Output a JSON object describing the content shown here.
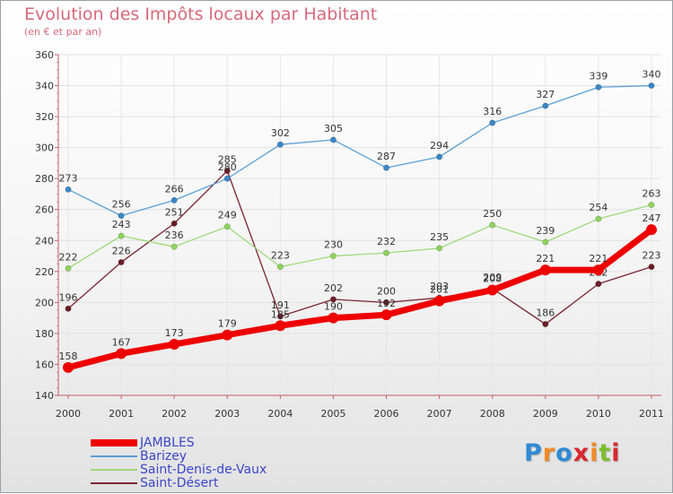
{
  "title": "Evolution des Impôts locaux par Habitant",
  "subtitle": "(en € et par an)",
  "logo": {
    "text": "Proxiti",
    "letter_colors": [
      "#2f8bd6",
      "#f08a24",
      "#2f8bd6",
      "#d9262e",
      "#f08a24",
      "#7cbf2e",
      "#d9262e"
    ]
  },
  "chart_data": {
    "type": "line",
    "title": "Evolution des Impôts locaux par Habitant",
    "subtitle": "(en € et par an)",
    "xlabel": "",
    "ylabel": "",
    "x": [
      "2000",
      "2001",
      "2002",
      "2003",
      "2004",
      "2005",
      "2006",
      "2007",
      "2008",
      "2009",
      "2010",
      "2011"
    ],
    "ylim": [
      140,
      360
    ],
    "yticks": [
      140,
      160,
      180,
      200,
      220,
      240,
      260,
      280,
      300,
      320,
      340,
      360
    ],
    "grid": true,
    "legend_position": "bottom-left",
    "series": [
      {
        "name": "Saint-Désert",
        "key": "saint-desert",
        "color": "#7a2531",
        "values": [
          196,
          226,
          251,
          285,
          191,
          202,
          200,
          203,
          209,
          186,
          212,
          223
        ],
        "labels": [
          "196",
          "226",
          "251",
          "285",
          "191",
          "202",
          "200",
          "203",
          "209",
          "186",
          "212",
          "223"
        ]
      },
      {
        "name": "Saint-Denis-de-Vaux",
        "key": "saint-denis-de-vaux",
        "color": "#9fd97a",
        "values": [
          222,
          243,
          236,
          249,
          223,
          230,
          232,
          235,
          250,
          239,
          254,
          263
        ],
        "labels": [
          "222",
          "243",
          "236",
          "249",
          "223",
          "230",
          "232",
          "235",
          "250",
          "239",
          "254",
          "263"
        ]
      },
      {
        "name": "Barizey",
        "key": "barizey",
        "color": "#5a9fd6",
        "values": [
          273,
          256,
          266,
          280,
          302,
          305,
          287,
          294,
          316,
          327,
          339,
          340
        ],
        "labels": [
          "273",
          "256",
          "266",
          "280",
          "302",
          "305",
          "287",
          "294",
          "316",
          "327",
          "339",
          "340"
        ]
      },
      {
        "name": "JAMBLES",
        "key": "jambles",
        "color": "#ee0000",
        "values": [
          158,
          167,
          173,
          179,
          185,
          190,
          192,
          201,
          208,
          221,
          221,
          247
        ],
        "labels": [
          "158",
          "167",
          "173",
          "179",
          "185",
          "190",
          "192",
          "201",
          "208",
          "221",
          "221",
          "247"
        ]
      }
    ],
    "legend_order": [
      "JAMBLES",
      "Barizey",
      "Saint-Denis-de-Vaux",
      "Saint-Désert"
    ]
  }
}
